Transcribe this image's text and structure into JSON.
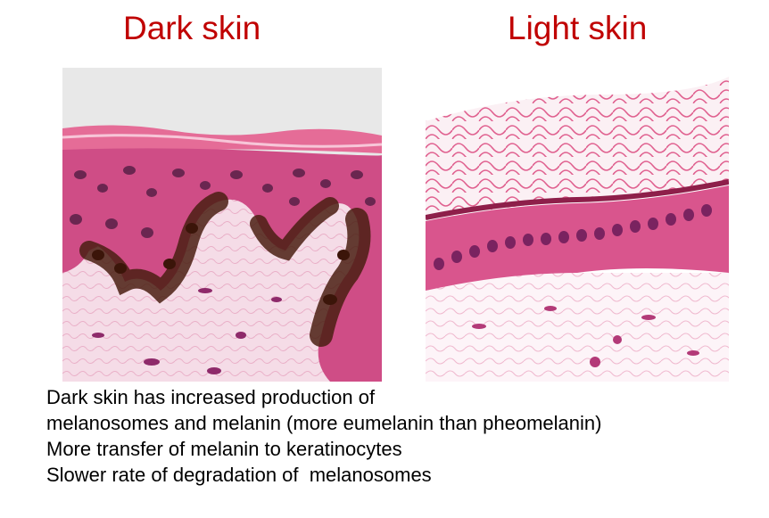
{
  "panels": {
    "dark": {
      "title": "Dark skin",
      "image_icon": "dark-skin-histology-micrograph"
    },
    "light": {
      "title": "Light skin",
      "image_icon": "light-skin-histology-micrograph"
    }
  },
  "caption": {
    "lines": [
      "Dark skin has increased production of",
      "melanosomes and melanin (more eumelanin than pheomelanin)",
      "More transfer of melanin to keratinocytes",
      "Slower rate of degradation of  melanosomes"
    ]
  },
  "colors": {
    "title": "#c00000",
    "stain_pink": "#e0608f",
    "stain_purple": "#8e2a6a",
    "melanin_brown": "#4a1f12",
    "dermis_light": "#f5dbe6"
  }
}
